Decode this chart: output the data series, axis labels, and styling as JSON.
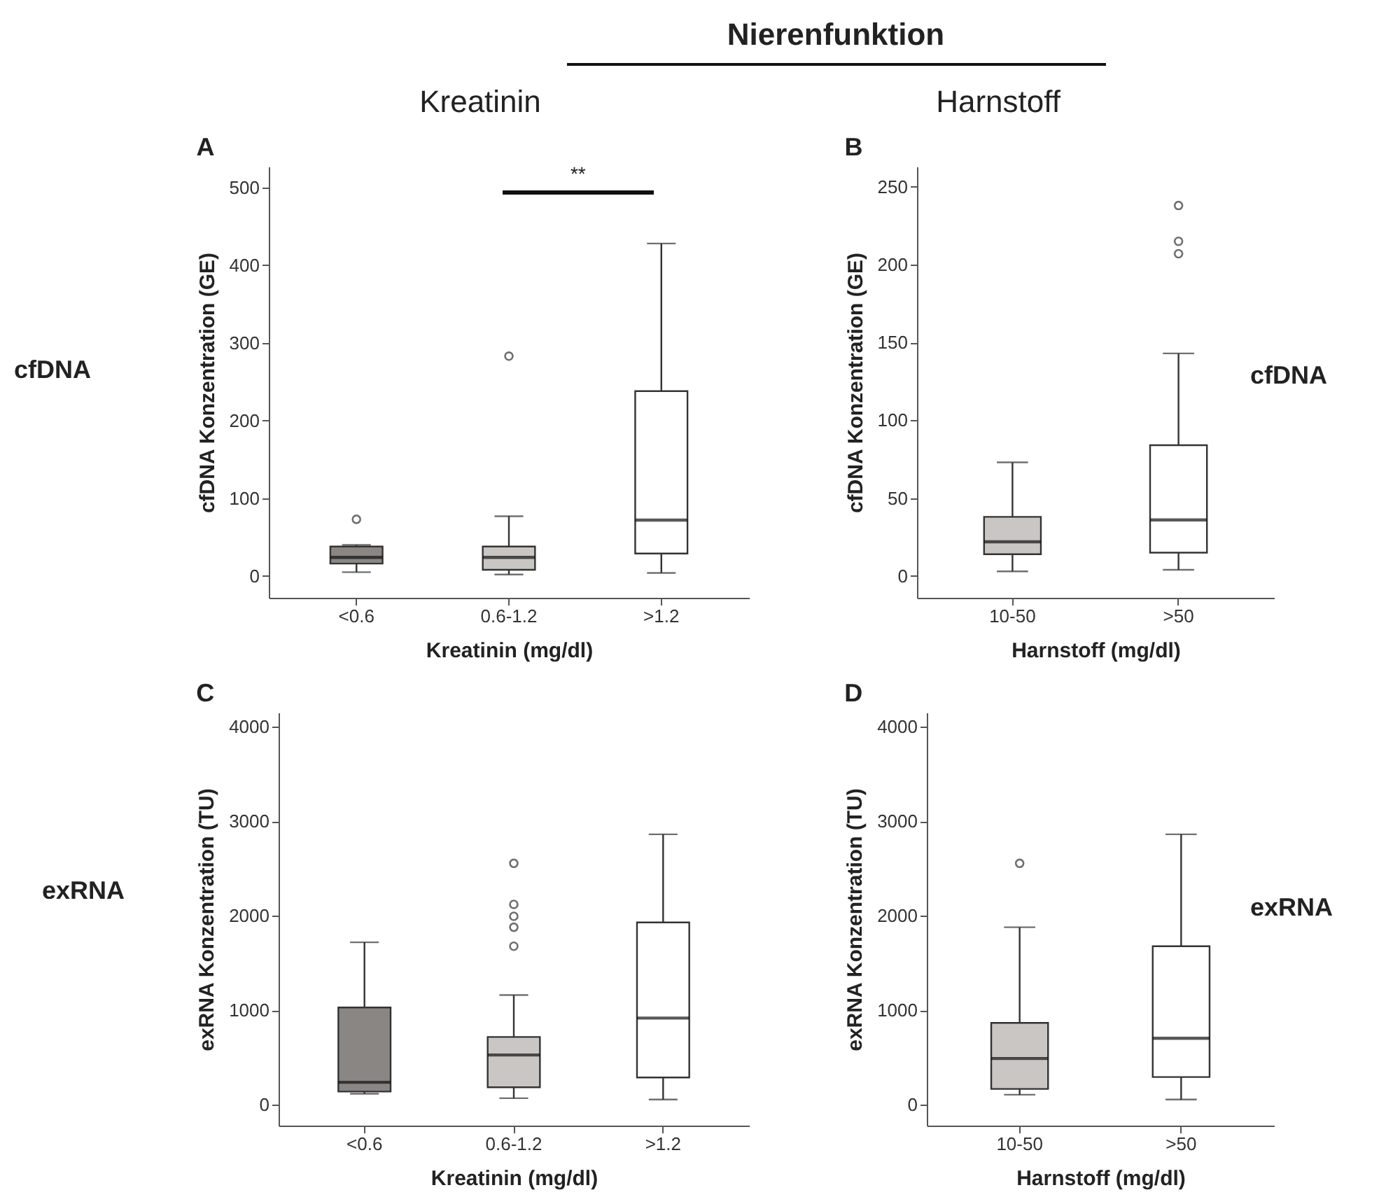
{
  "chart_data": [
    {
      "type": "box",
      "title": "A",
      "xlabel": "Kreatinin (mg/dl)",
      "ylabel": "cfDNA Konzentration (GE)",
      "categories": [
        "<0.6",
        "0.6-1.2",
        ">1.2"
      ],
      "colors": [
        "#8a8684",
        "#c9c6c3",
        "#ffffff"
      ],
      "ylim": [
        -28,
        527
      ],
      "yticks": [
        0,
        100,
        200,
        300,
        400,
        500
      ],
      "annotations": [
        "Nierenfunktion",
        "Kreatinin",
        "cfDNA",
        "**"
      ],
      "boxes": [
        {
          "low": 5,
          "q1": 16,
          "median": 24,
          "q3": 38,
          "high": 40,
          "outliers": [
            73
          ]
        },
        {
          "low": 2,
          "q1": 8,
          "median": 24,
          "q3": 38,
          "high": 77,
          "outliers": [
            283
          ]
        },
        {
          "low": 4,
          "q1": 29,
          "median": 72,
          "q3": 238,
          "high": 428
        }
      ]
    },
    {
      "type": "box",
      "title": "B",
      "xlabel": "Harnstoff (mg/dl)",
      "ylabel": "cfDNA Konzentration (GE)",
      "categories": [
        "10-50",
        ">50"
      ],
      "colors": [
        "#c9c6c3",
        "#ffffff"
      ],
      "ylim": [
        -14,
        263
      ],
      "yticks": [
        0,
        50,
        100,
        150,
        200,
        250
      ],
      "annotations": [
        "Harnstoff",
        "cfDNA"
      ],
      "boxes": [
        {
          "low": 3,
          "q1": 14,
          "median": 22,
          "q3": 38,
          "high": 73
        },
        {
          "low": 4,
          "q1": 15,
          "median": 36,
          "q3": 84,
          "high": 143,
          "outliers": [
            207,
            215,
            238
          ]
        }
      ]
    },
    {
      "type": "box",
      "title": "C",
      "xlabel": "Kreatinin (mg/dl)",
      "ylabel": "exRNA Konzentration (TU)",
      "categories": [
        "<0.6",
        "0.6-1.2",
        ">1.2"
      ],
      "colors": [
        "#8a8684",
        "#c9c6c3",
        "#ffffff"
      ],
      "ylim": [
        -220,
        4150
      ],
      "yticks": [
        0,
        1000,
        2000,
        3000,
        4000
      ],
      "annotations": [
        "exRNA"
      ],
      "boxes": [
        {
          "low": 117,
          "q1": 140,
          "median": 238,
          "q3": 1030,
          "high": 1720
        },
        {
          "low": 70,
          "q1": 186,
          "median": 527,
          "q3": 718,
          "high": 1161,
          "outliers": [
            1678,
            1879,
            1995,
            2121,
            2555
          ]
        },
        {
          "low": 56,
          "q1": 289,
          "median": 918,
          "q3": 1930,
          "high": 2862
        }
      ]
    },
    {
      "type": "box",
      "title": "D",
      "xlabel": "Harnstoff (mg/dl)",
      "ylabel": "exRNA Konzentration (TU)",
      "categories": [
        "10-50",
        ">50"
      ],
      "colors": [
        "#c9c6c3",
        "#ffffff"
      ],
      "ylim": [
        -220,
        4150
      ],
      "yticks": [
        0,
        1000,
        2000,
        3000,
        4000
      ],
      "annotations": [
        "exRNA"
      ],
      "boxes": [
        {
          "low": 107,
          "q1": 168,
          "median": 490,
          "q3": 867,
          "high": 1879,
          "outliers": [
            2555
          ]
        },
        {
          "low": 56,
          "q1": 294,
          "median": 704,
          "q3": 1678,
          "high": 2862
        }
      ]
    }
  ]
}
